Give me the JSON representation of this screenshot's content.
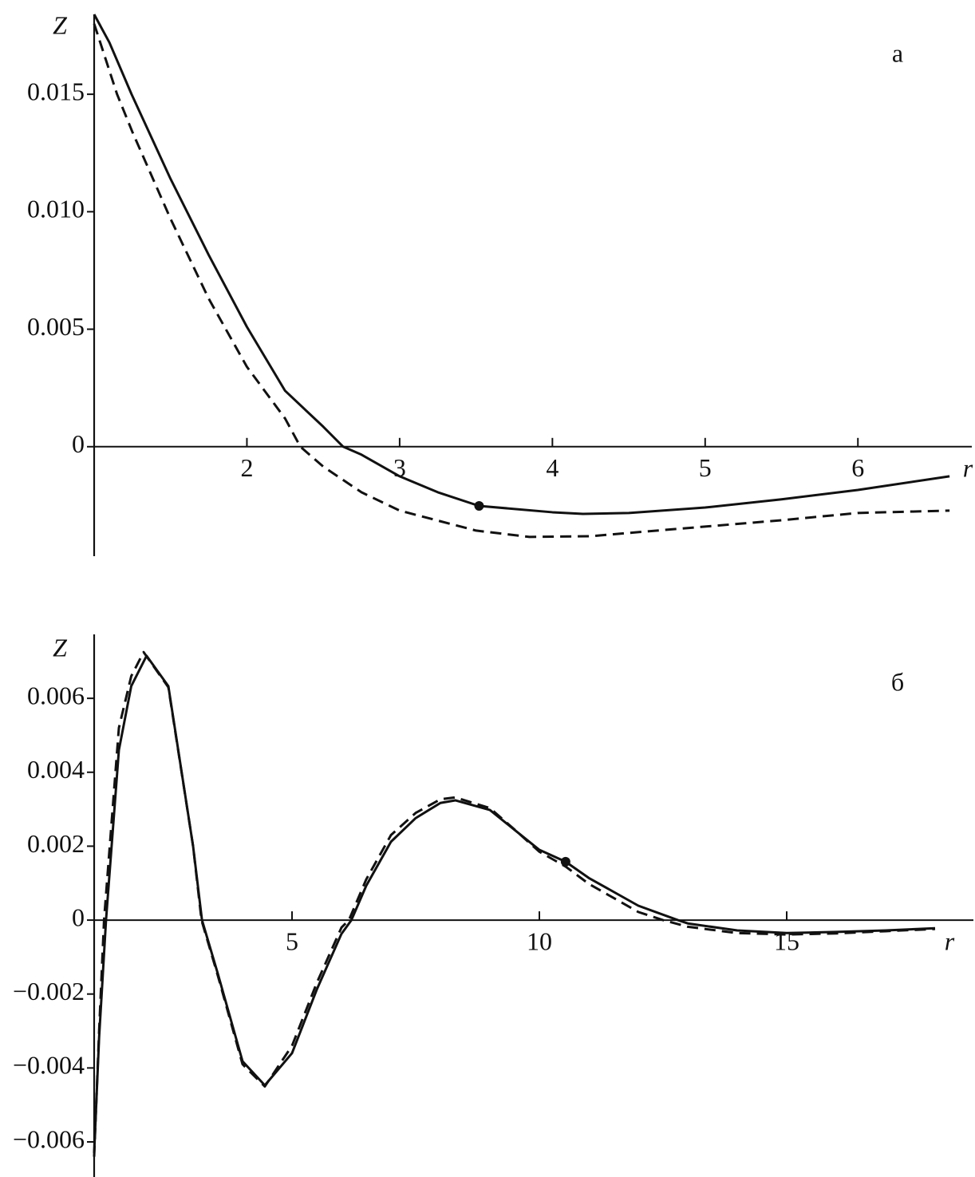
{
  "chart_data": [
    {
      "type": "line",
      "y_label": "Z",
      "x_label": "r",
      "panel_label": "а",
      "xlim": [
        1,
        6.73
      ],
      "ylim": [
        -0.00466,
        0.0184
      ],
      "xticks": [
        2,
        3,
        4,
        5,
        6
      ],
      "yticks": [
        0,
        0.005,
        {
          "value": 0.01,
          "label": "0.010"
        },
        0.015
      ],
      "series": [
        {
          "style": "solid",
          "color": "#111",
          "x": [
            1,
            1.1,
            1.245,
            1.5,
            1.75,
            2,
            2.25,
            2.5,
            2.63,
            2.75,
            3,
            3.25,
            3.52,
            4,
            4.2,
            4.5,
            5,
            5.5,
            6,
            6.6
          ],
          "values": [
            0.0184,
            0.0172,
            0.015,
            0.0114,
            0.00816,
            0.0051,
            0.00238,
            0.00085,
            0,
            -0.00034,
            -0.00126,
            -0.00194,
            -0.00252,
            -0.00279,
            -0.00286,
            -0.00282,
            -0.00259,
            -0.00224,
            -0.00184,
            -0.00126
          ]
        },
        {
          "style": "dashed",
          "color": "#111",
          "x": [
            1,
            1.15,
            1.25,
            1.5,
            1.75,
            2,
            2.25,
            2.35,
            2.5,
            2.75,
            3,
            3.5,
            3.85,
            4.25,
            4.5,
            5,
            5.5,
            6,
            6.6
          ],
          "values": [
            0.018,
            0.015,
            0.0134,
            0.0097,
            0.0063,
            0.0034,
            0.0012,
            0,
            -0.00085,
            -0.00194,
            -0.00272,
            -0.00357,
            -0.00384,
            -0.00381,
            -0.00367,
            -0.0034,
            -0.00313,
            -0.00282,
            -0.00272
          ]
        }
      ],
      "markers": {
        "x": [
          3.52
        ],
        "values": [
          -0.00252
        ]
      }
    },
    {
      "type": "line",
      "y_label": "Z",
      "x_label": "r",
      "panel_label": "б",
      "xlim": [
        1,
        18.75
      ],
      "ylim": [
        -0.00695,
        0.00773
      ],
      "xticks": [
        5,
        10,
        15
      ],
      "yticks": [
        0.006,
        0.004,
        0.002,
        0,
        {
          "value": -0.002,
          "label": "−0.002"
        },
        {
          "value": -0.004,
          "label": "−0.004"
        },
        {
          "value": -0.006,
          "label": "−0.006"
        }
      ],
      "series": [
        {
          "style": "solid",
          "color": "#111",
          "x": [
            1,
            1.1,
            1.24,
            1.5,
            1.75,
            2.06,
            2.5,
            3,
            3.18,
            3.5,
            4,
            4.45,
            5,
            5.5,
            6,
            6.2,
            6.5,
            7,
            7.5,
            8,
            8.3,
            9,
            9.5,
            10,
            10.53,
            11,
            12,
            12.8,
            13,
            14,
            15,
            16,
            17,
            18
          ],
          "values": [
            -0.0063,
            -0.00318,
            0,
            0.0046,
            0.00633,
            0.00715,
            0.00633,
            0.002,
            0,
            -0.00145,
            -0.00382,
            -0.00447,
            -0.0036,
            -0.00188,
            -0.00037,
            0,
            0.00093,
            0.00212,
            0.00276,
            0.00317,
            0.00324,
            0.00298,
            0.00244,
            0.0019,
            0.00158,
            0.00114,
            0.00039,
            0,
            -9e-05,
            -0.00028,
            -0.00035,
            -0.00032,
            -0.00028,
            -0.00022
          ]
        },
        {
          "style": "dashed",
          "color": "#111",
          "x": [
            1,
            1.1,
            1.2,
            1.5,
            1.75,
            2,
            2.5,
            3,
            3.17,
            3.5,
            4,
            4.45,
            5,
            5.5,
            6,
            6.15,
            6.5,
            7,
            7.5,
            8,
            8.3,
            9,
            9.5,
            10,
            10.53,
            11,
            12,
            12.5,
            13,
            14,
            15,
            16,
            17,
            18
          ],
          "values": [
            -0.0064,
            -0.003,
            0,
            0.0052,
            0.0066,
            0.00725,
            0.0063,
            0.002,
            0,
            -0.0015,
            -0.0039,
            -0.0045,
            -0.0034,
            -0.0017,
            -0.0002,
            0,
            0.0011,
            0.0023,
            0.0029,
            0.00327,
            0.00332,
            0.00303,
            0.00245,
            0.00185,
            0.00145,
            0.00098,
            0.00022,
            0,
            -0.00018,
            -0.00035,
            -0.00039,
            -0.00036,
            -0.0003,
            -0.00024
          ]
        }
      ],
      "markers": {
        "x": [
          10.53
        ],
        "values": [
          0.00158
        ]
      }
    }
  ]
}
